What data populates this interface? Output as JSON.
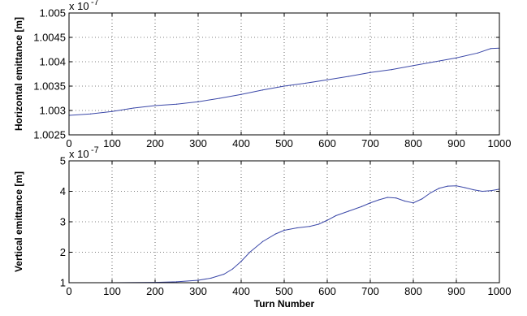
{
  "chart_data": [
    {
      "type": "line",
      "ylabel": "Horizontal emittance [m]",
      "xlabel": "",
      "scale_note": "x 10",
      "scale_exp": "-7",
      "xlim": [
        0,
        1000
      ],
      "ylim": [
        1.0025,
        1.005
      ],
      "xticks": [
        "0",
        "100",
        "200",
        "300",
        "400",
        "500",
        "600",
        "700",
        "800",
        "900",
        "1000"
      ],
      "yticks": [
        "1.0025",
        "1.003",
        "1.0035",
        "1.004",
        "1.0045",
        "1.005"
      ],
      "grid": true,
      "line_color": "#3b48a8",
      "series": [
        {
          "x": [
            0,
            50,
            100,
            150,
            200,
            250,
            300,
            350,
            400,
            450,
            500,
            550,
            600,
            650,
            700,
            750,
            800,
            850,
            900,
            950,
            980,
            1000
          ],
          "y": [
            1.0029,
            1.00293,
            1.00298,
            1.00305,
            1.0031,
            1.00313,
            1.00318,
            1.00325,
            1.00333,
            1.00342,
            1.0035,
            1.00356,
            1.00363,
            1.0037,
            1.00378,
            1.00384,
            1.00392,
            1.004,
            1.00408,
            1.00418,
            1.00427,
            1.00428
          ]
        }
      ]
    },
    {
      "type": "line",
      "ylabel": "Vertical emittance [m]",
      "xlabel": "Turn Number",
      "scale_note": "x 10",
      "scale_exp": "-7",
      "xlim": [
        0,
        1000
      ],
      "ylim": [
        1,
        5
      ],
      "xticks": [
        "0",
        "100",
        "200",
        "300",
        "400",
        "500",
        "600",
        "700",
        "800",
        "900",
        "1000"
      ],
      "yticks": [
        "1",
        "2",
        "3",
        "4",
        "5"
      ],
      "grid": true,
      "line_color": "#3b48a8",
      "series": [
        {
          "x": [
            0,
            100,
            200,
            250,
            300,
            330,
            360,
            380,
            400,
            420,
            450,
            480,
            500,
            530,
            560,
            580,
            600,
            620,
            650,
            680,
            700,
            720,
            740,
            760,
            780,
            800,
            820,
            840,
            860,
            880,
            900,
            920,
            940,
            960,
            980,
            1000
          ],
          "y": [
            1.0,
            1.0,
            1.01,
            1.03,
            1.08,
            1.15,
            1.28,
            1.45,
            1.7,
            2.0,
            2.35,
            2.6,
            2.72,
            2.8,
            2.85,
            2.92,
            3.05,
            3.2,
            3.35,
            3.5,
            3.62,
            3.72,
            3.8,
            3.78,
            3.68,
            3.62,
            3.75,
            3.95,
            4.1,
            4.17,
            4.18,
            4.12,
            4.05,
            4.0,
            4.02,
            4.07
          ]
        }
      ]
    }
  ]
}
